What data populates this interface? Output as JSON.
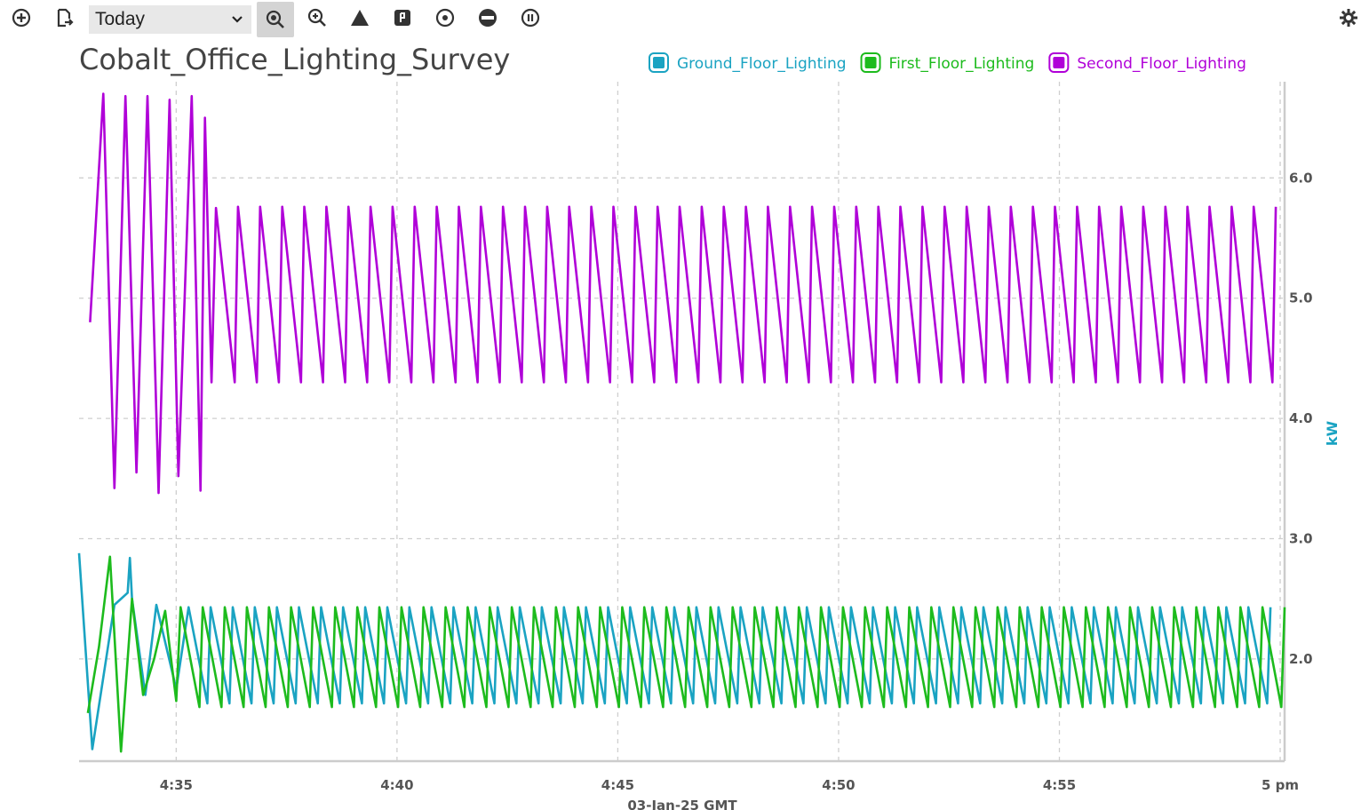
{
  "toolbar": {
    "range_value": "Today",
    "buttons": [
      {
        "name": "add-icon"
      },
      {
        "name": "export-icon"
      },
      {
        "name": "zoom-reset-icon",
        "active": true
      },
      {
        "name": "zoom-in-icon"
      },
      {
        "name": "triangle-icon"
      },
      {
        "name": "flag-icon"
      },
      {
        "name": "target-icon"
      },
      {
        "name": "minus-circle-icon"
      },
      {
        "name": "pause-icon"
      }
    ],
    "settings_icon": "gear-icon"
  },
  "chart_data": {
    "type": "line",
    "title": "Cobalt_Office_Lighting_Survey",
    "ylabel": "kW",
    "xlabel": "03-Jan-25 GMT",
    "ylim": [
      1.15,
      6.8
    ],
    "xlim": [
      -0.2,
      27.1
    ],
    "y_ticks": [
      2.0,
      3.0,
      4.0,
      5.0,
      6.0
    ],
    "y_tick_labels": [
      "2.0",
      "3.0",
      "4.0",
      "5.0",
      "6.0"
    ],
    "x_ticks": [
      2,
      7,
      12,
      17,
      22,
      27
    ],
    "x_tick_labels": [
      "4:35",
      "4:40",
      "4:45",
      "4:50",
      "4:55",
      "5 pm"
    ],
    "x_unit_note": "minutes after 4:33",
    "grid": true,
    "legend_position": "top-right",
    "y_axis_side": "right",
    "series": [
      {
        "name": "Ground_Floor_Lighting",
        "color": "#1aa3c2",
        "x": [
          -0.2,
          0.1,
          0.6,
          0.9,
          0.95,
          1.0,
          1.3,
          1.55,
          2.0
        ],
        "y": [
          2.88,
          1.25,
          2.45,
          2.55,
          2.84,
          2.5,
          1.7,
          2.45,
          1.75
        ],
        "periodic": {
          "start": 2.0,
          "end": 27.1,
          "period": 0.5,
          "phase_of_peak": 0.28,
          "peak": 2.43,
          "trough": 1.63
        }
      },
      {
        "name": "First_Floor_Lighting",
        "color": "#1dbb1d",
        "x": [
          0.0,
          0.25,
          0.5,
          0.75,
          1.0,
          1.25,
          1.5,
          1.75,
          2.0
        ],
        "y": [
          1.55,
          2.1,
          2.85,
          1.23,
          2.5,
          1.7,
          2.0,
          2.4,
          1.65
        ],
        "periodic": {
          "start": 2.0,
          "end": 27.1,
          "period": 0.5,
          "phase_of_peak": 0.1,
          "peak": 2.43,
          "trough": 1.6
        }
      },
      {
        "name": "Second_Floor_Lighting",
        "color": "#b000d8",
        "x": [
          0.05,
          0.35,
          0.6,
          0.85,
          1.1,
          1.35,
          1.6,
          1.85,
          2.05,
          2.35,
          2.55,
          2.65,
          2.8,
          2.9
        ],
        "y": [
          4.8,
          6.7,
          3.42,
          6.68,
          3.55,
          6.68,
          3.38,
          6.65,
          3.52,
          6.68,
          3.4,
          6.5,
          4.3,
          5.75
        ],
        "periodic": {
          "start": 2.9,
          "end": 27.1,
          "period": 0.5,
          "phase_of_peak": 0.0,
          "peak": 5.76,
          "trough": 4.3
        }
      }
    ]
  }
}
